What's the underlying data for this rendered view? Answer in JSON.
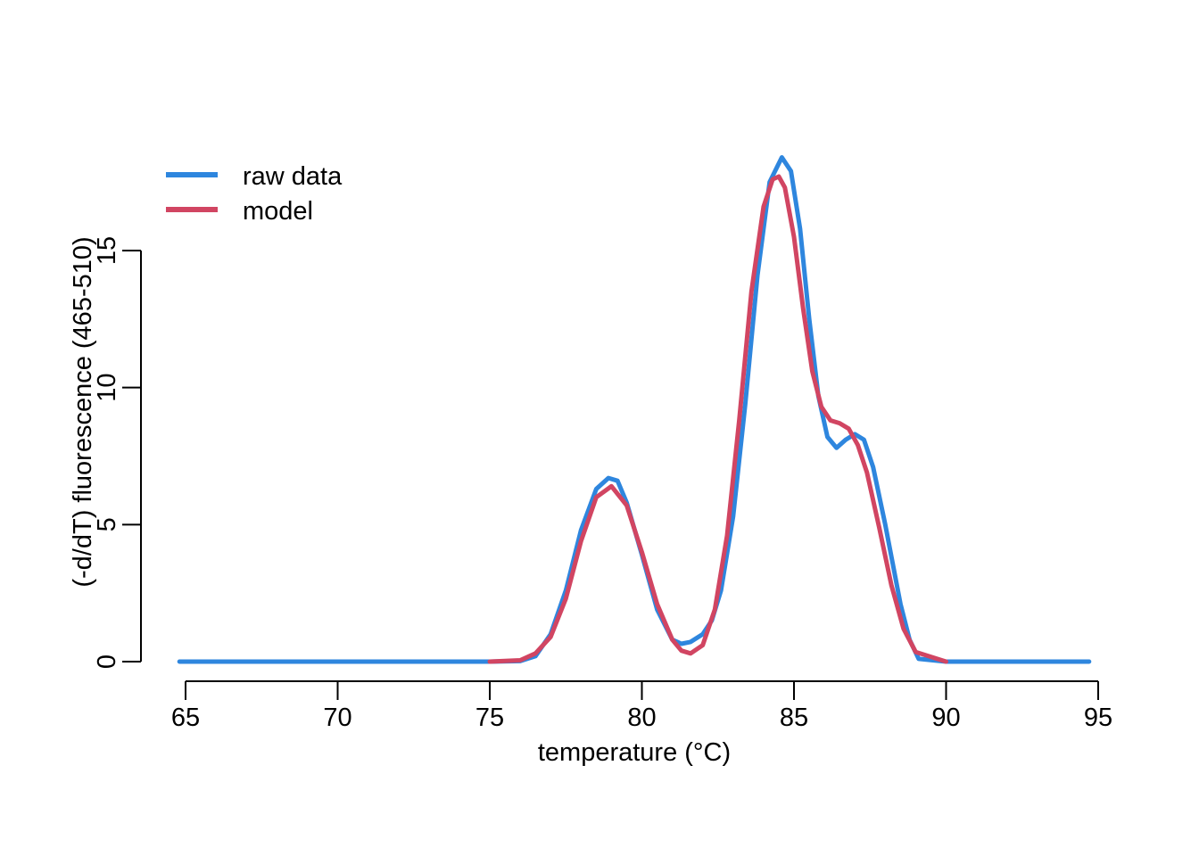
{
  "chart_data": {
    "type": "line",
    "title": "",
    "xlabel": "temperature (°C)",
    "ylabel": "(-d/dT) fluorescence (465-510)",
    "xlim": [
      65,
      95
    ],
    "ylim": [
      0,
      15
    ],
    "x_ticks": [
      "65",
      "70",
      "75",
      "80",
      "85",
      "90",
      "95"
    ],
    "y_ticks": [
      "0",
      "5",
      "10",
      "15"
    ],
    "grid": false,
    "legend_position": "top-left",
    "series": [
      {
        "name": "raw data",
        "color": "#2E86DE",
        "x": [
          64.8,
          70,
          75,
          76,
          76.5,
          77,
          77.5,
          78,
          78.5,
          78.9,
          79.2,
          79.5,
          80,
          80.5,
          81,
          81.3,
          81.6,
          82,
          82.3,
          82.6,
          83,
          83.4,
          83.8,
          84.2,
          84.6,
          84.9,
          85.2,
          85.5,
          85.8,
          86.1,
          86.4,
          86.7,
          87,
          87.3,
          87.6,
          88,
          88.5,
          88.8,
          89.1,
          90,
          94.7
        ],
        "y": [
          0,
          0,
          0,
          0.02,
          0.2,
          1.0,
          2.6,
          4.8,
          6.3,
          6.7,
          6.6,
          5.8,
          3.9,
          1.9,
          0.8,
          0.65,
          0.72,
          1.0,
          1.5,
          2.6,
          5.3,
          9.4,
          14.1,
          17.5,
          18.4,
          17.9,
          15.8,
          12.5,
          9.7,
          8.2,
          7.8,
          8.1,
          8.3,
          8.1,
          7.1,
          5.0,
          2.1,
          0.8,
          0.1,
          0,
          0
        ]
      },
      {
        "name": "model",
        "color": "#D14562",
        "x": [
          75,
          76,
          76.5,
          77,
          77.5,
          78,
          78.5,
          79,
          79.5,
          80,
          80.5,
          81,
          81.3,
          81.6,
          82,
          82.4,
          82.8,
          83.2,
          83.6,
          84,
          84.3,
          84.5,
          84.7,
          85,
          85.3,
          85.6,
          85.9,
          86.2,
          86.5,
          86.8,
          87.1,
          87.4,
          87.8,
          88.2,
          88.6,
          89,
          90
        ],
        "y": [
          0,
          0.05,
          0.3,
          0.9,
          2.3,
          4.4,
          6.0,
          6.4,
          5.7,
          4.0,
          2.1,
          0.8,
          0.4,
          0.3,
          0.6,
          1.9,
          4.6,
          8.8,
          13.5,
          16.6,
          17.6,
          17.7,
          17.3,
          15.5,
          12.9,
          10.6,
          9.3,
          8.8,
          8.7,
          8.5,
          7.9,
          6.9,
          4.9,
          2.8,
          1.2,
          0.35,
          0
        ]
      }
    ]
  }
}
